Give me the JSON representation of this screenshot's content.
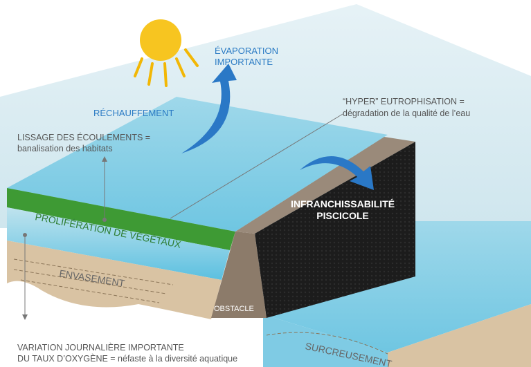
{
  "labels": {
    "evaporation": [
      "ÉVAPORATION",
      "IMPORTANTE"
    ],
    "warming": "RÉCHAUFFEMENT",
    "smoothing": [
      "LISSAGE DES ÉCOULEMENTS =",
      "banalisation des habitats"
    ],
    "eutrophication": [
      "“HYPER” EUTROPHISATION =",
      "dégradation de la qualité de l’eau"
    ],
    "impassability": [
      "INFRANCHISSABILITÉ",
      "PISCICOLE"
    ],
    "vegetation": "PROLIFÉRATION DE VÉGÉTAUX",
    "silting": "ENVASEMENT",
    "obstacle": "OBSTACLE",
    "scouring": "SURCREUSEMENT",
    "oxygen": [
      "VARIATION JOURNALIÈRE IMPORTANTE",
      "DU TAUX D’OXYGÈNE = néfaste à la diversité aquatique"
    ]
  }
}
